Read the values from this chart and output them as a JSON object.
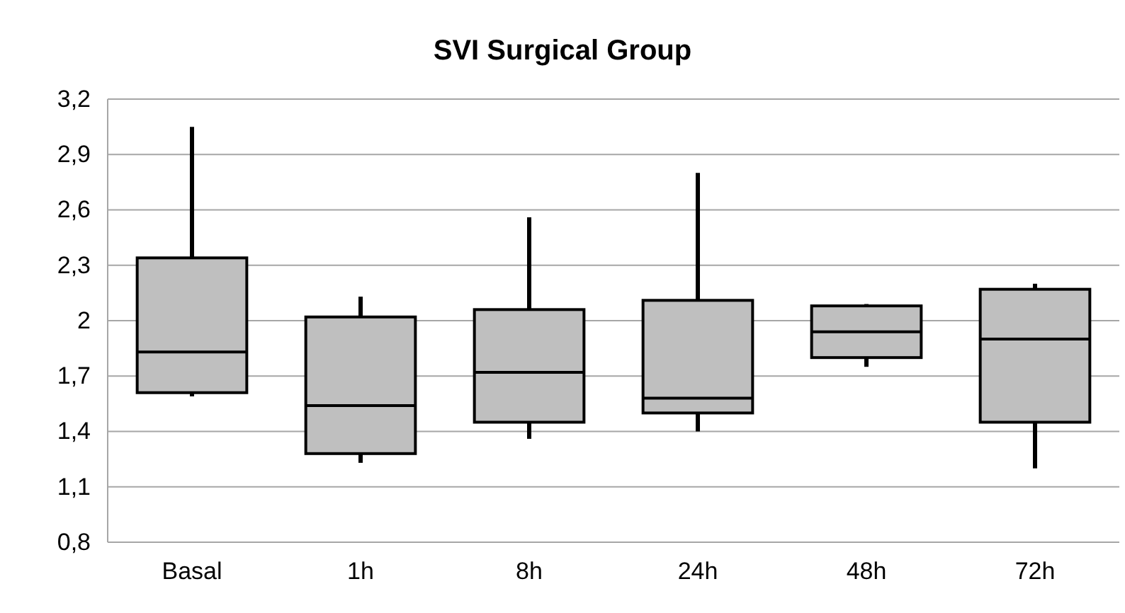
{
  "chart_data": {
    "type": "box",
    "title": "SVI Surgical Group",
    "categories": [
      "Basal",
      "1h",
      "8h",
      "24h",
      "48h",
      "72h"
    ],
    "boxes": [
      {
        "low": 1.59,
        "q1": 1.61,
        "median": 1.83,
        "q3": 2.34,
        "high": 3.05
      },
      {
        "low": 1.23,
        "q1": 1.28,
        "median": 1.54,
        "q3": 2.02,
        "high": 2.13
      },
      {
        "low": 1.36,
        "q1": 1.45,
        "median": 1.72,
        "q3": 2.06,
        "high": 2.56
      },
      {
        "low": 1.4,
        "q1": 1.5,
        "median": 1.58,
        "q3": 2.11,
        "high": 2.8
      },
      {
        "low": 1.75,
        "q1": 1.8,
        "median": 1.94,
        "q3": 2.08,
        "high": 2.09
      },
      {
        "low": 1.2,
        "q1": 1.45,
        "median": 1.9,
        "q3": 2.17,
        "high": 2.2
      }
    ],
    "color": "#bfbfbf",
    "ylim": [
      0.8,
      3.2
    ],
    "yticks": [
      {
        "value": 0.8,
        "label": "0,8"
      },
      {
        "value": 1.1,
        "label": "1,1"
      },
      {
        "value": 1.4,
        "label": "1,4"
      },
      {
        "value": 1.7,
        "label": "1,7"
      },
      {
        "value": 2,
        "label": "2"
      },
      {
        "value": 2.3,
        "label": "2,3"
      },
      {
        "value": 2.6,
        "label": "2,6"
      },
      {
        "value": 2.9,
        "label": "2,9"
      },
      {
        "value": 3.2,
        "label": "3,2"
      }
    ],
    "grid": "y"
  }
}
